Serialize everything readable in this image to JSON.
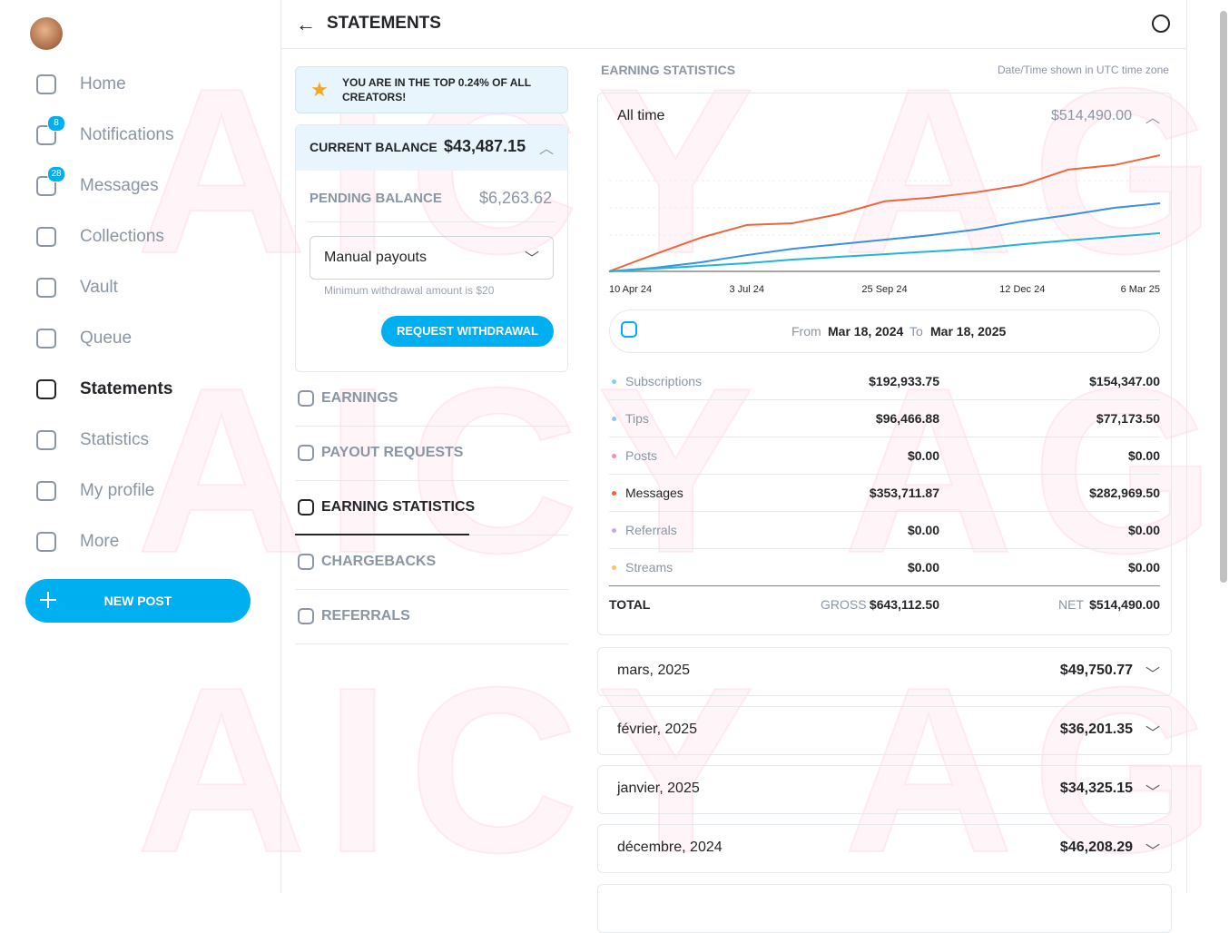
{
  "watermark": "AICY AGENCY",
  "sidebar": {
    "items": [
      {
        "label": "Home"
      },
      {
        "label": "Notifications",
        "badge": 8
      },
      {
        "label": "Messages",
        "badge": 28
      },
      {
        "label": "Collections"
      },
      {
        "label": "Vault"
      },
      {
        "label": "Queue"
      },
      {
        "label": "Statements"
      },
      {
        "label": "Statistics"
      },
      {
        "label": "My profile"
      },
      {
        "label": "More"
      }
    ],
    "active": "Statements",
    "new_post": "NEW POST"
  },
  "header": {
    "title": "STATEMENTS"
  },
  "left": {
    "banner": "YOU ARE IN THE TOP 0.24% OF ALL CREATORS!",
    "current_balance_label": "CURRENT BALANCE",
    "current_balance": "$43,487.15",
    "pending_balance_label": "PENDING BALANCE",
    "pending_balance": "$6,263.62",
    "payout_select": "Manual payouts",
    "min_note": "Minimum withdrawal amount is $20",
    "withdraw_button": "REQUEST WITHDRAWAL",
    "tabs": [
      {
        "label": "EARNINGS"
      },
      {
        "label": "PAYOUT REQUESTS"
      },
      {
        "label": "EARNING STATISTICS"
      },
      {
        "label": "CHARGEBACKS"
      },
      {
        "label": "REFERRALS"
      }
    ],
    "active_tab": "EARNING STATISTICS"
  },
  "stats": {
    "title": "EARNING STATISTICS",
    "tz_note": "Date/Time shown in UTC time zone",
    "period": "All time",
    "period_total": "$514,490.00",
    "chart": {
      "type": "line",
      "xlim": [
        0,
        12
      ],
      "ylim": [
        0,
        550000
      ],
      "xticks": [
        {
          "value": 0,
          "label": "10 Apr 24"
        },
        {
          "value": 3,
          "label": "3 Jul 24"
        },
        {
          "value": 6,
          "label": "25 Sep 24"
        },
        {
          "value": 9,
          "label": "12 Dec 24"
        },
        {
          "value": 12,
          "label": "6 Mar 25"
        }
      ],
      "series": [
        {
          "color": "#f0643c",
          "values": [
            0,
            76000,
            149000,
            205000,
            213000,
            253000,
            310000,
            326000,
            350000,
            382000,
            450000,
            470000,
            514000
          ]
        },
        {
          "color": "#3a8fe6",
          "values": [
            0,
            16000,
            40000,
            72000,
            100000,
            120000,
            140000,
            160000,
            185000,
            221000,
            249000,
            281000,
            301000
          ]
        },
        {
          "color": "#1fb6d8",
          "values": [
            0,
            12000,
            24000,
            36000,
            52000,
            64000,
            76000,
            88000,
            100000,
            120000,
            137000,
            153000,
            169000
          ]
        }
      ]
    },
    "from_label": "From",
    "from": "Mar 18, 2024",
    "to_label": "To",
    "to": "Mar 18, 2025",
    "rows": [
      {
        "name": "Subscriptions",
        "color": "#8ec6ee",
        "gross": "$192,933.75",
        "net": "$154,347.00"
      },
      {
        "name": "Tips",
        "color": "#8ec6ee",
        "gross": "$96,466.88",
        "net": "$77,173.50"
      },
      {
        "name": "Posts",
        "color": "#f08fb0",
        "gross": "$0.00",
        "net": "$0.00"
      },
      {
        "name": "Messages",
        "color": "#f0603e",
        "gross": "$353,711.87",
        "net": "$282,969.50"
      },
      {
        "name": "Referrals",
        "color": "#c5a8e8",
        "gross": "$0.00",
        "net": "$0.00"
      },
      {
        "name": "Streams",
        "color": "#f5c46a",
        "gross": "$0.00",
        "net": "$0.00"
      }
    ],
    "total": {
      "label": "TOTAL",
      "gross_label": "GROSS",
      "gross": "$643,112.50",
      "net_label": "NET",
      "net": "$514,490.00"
    },
    "months": [
      {
        "month": "mars, 2025",
        "amount": "$49,750.77"
      },
      {
        "month": "février, 2025",
        "amount": "$36,201.35"
      },
      {
        "month": "janvier, 2025",
        "amount": "$34,325.15"
      },
      {
        "month": "décembre, 2024",
        "amount": "$46,208.29"
      }
    ]
  }
}
